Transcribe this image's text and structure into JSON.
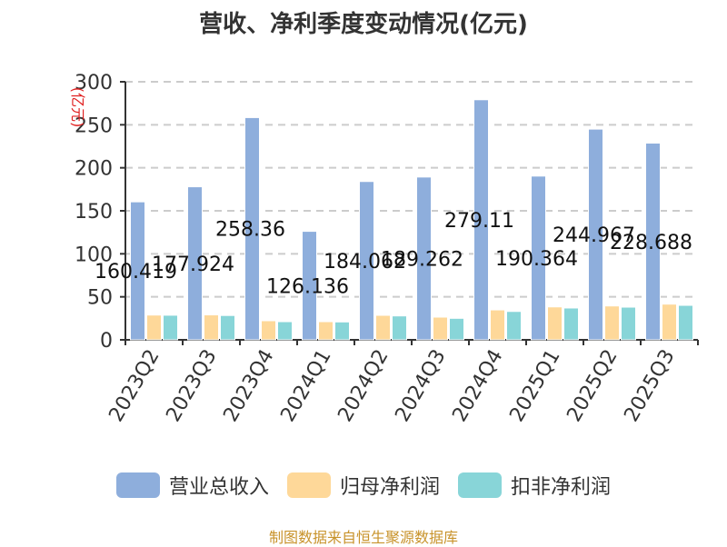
{
  "title": "营收、净利季度变动情况(亿元)",
  "source_note": "制图数据来自恒生聚源数据库",
  "y_axis_unit": "(亿元)",
  "legend": [
    {
      "label": "营业总收入",
      "color": "#8eaedc"
    },
    {
      "label": "归母净利润",
      "color": "#fed899"
    },
    {
      "label": "扣非净利润",
      "color": "#88d5d8"
    }
  ],
  "chart_data": {
    "type": "bar",
    "title": "营收、净利季度变动情况(亿元)",
    "xlabel": "",
    "ylabel": "(亿元)",
    "ylim": [
      0,
      300
    ],
    "yticks": [
      0,
      50,
      100,
      150,
      200,
      250,
      300
    ],
    "grid": true,
    "legend_position": "bottom",
    "categories": [
      "2023Q2",
      "2023Q3",
      "2023Q4",
      "2024Q1",
      "2024Q2",
      "2024Q3",
      "2024Q4",
      "2025Q1",
      "2025Q2",
      "2025Q3"
    ],
    "series": [
      {
        "name": "营业总收入",
        "color": "#8eaedc",
        "values": [
          160.419,
          177.924,
          258.36,
          126.136,
          184.062,
          189.262,
          279.11,
          190.364,
          244.967,
          228.688
        ],
        "labels": [
          "160.419",
          "177.924",
          "258.36",
          "126.136",
          "184.062",
          "189.262",
          "279.11",
          "190.364",
          "244.967",
          "228.688"
        ]
      },
      {
        "name": "归母净利润",
        "color": "#fed899",
        "values": [
          28.8,
          29.0,
          22.2,
          21.1,
          28.5,
          26.4,
          34.8,
          38.3,
          39.4,
          41.5
        ]
      },
      {
        "name": "扣非净利润",
        "color": "#88d5d8",
        "values": [
          28.6,
          28.3,
          21.1,
          20.8,
          27.8,
          25.0,
          33.0,
          37.0,
          38.0,
          40.1
        ]
      }
    ]
  }
}
